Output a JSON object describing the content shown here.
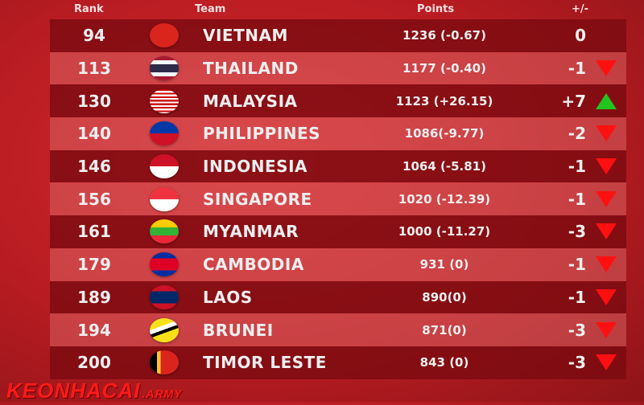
{
  "watermark": {
    "brand": "KEONHACAI",
    "suffix": ".ARMY"
  },
  "headers": {
    "rank": "Rank",
    "team": "Team",
    "points": "Points",
    "change": "+/-"
  },
  "colors": {
    "down": "#ff1010",
    "up": "#22c41e"
  },
  "rows": [
    {
      "rank": "94",
      "team": "VIETNAM",
      "points": "1236 (-0.67)",
      "change": "0",
      "trend": "none",
      "flag": "vietnam"
    },
    {
      "rank": "113",
      "team": "THAILAND",
      "points": "1177 (-0.40)",
      "change": "-1",
      "trend": "down",
      "flag": "thailand"
    },
    {
      "rank": "130",
      "team": "MALAYSIA",
      "points": "1123 (+26.15)",
      "change": "+7",
      "trend": "up",
      "flag": "malaysia"
    },
    {
      "rank": "140",
      "team": "PHILIPPINES",
      "points": "1086(-9.77)",
      "change": "-2",
      "trend": "down",
      "flag": "philippines"
    },
    {
      "rank": "146",
      "team": "INDONESIA",
      "points": "1064 (-5.81)",
      "change": "-1",
      "trend": "down",
      "flag": "indonesia"
    },
    {
      "rank": "156",
      "team": "SINGAPORE",
      "points": "1020 (-12.39)",
      "change": "-1",
      "trend": "down",
      "flag": "singapore"
    },
    {
      "rank": "161",
      "team": "MYANMAR",
      "points": "1000 (-11.27)",
      "change": "-3",
      "trend": "down",
      "flag": "myanmar"
    },
    {
      "rank": "179",
      "team": "CAMBODIA",
      "points": "931 (0)",
      "change": "-1",
      "trend": "down",
      "flag": "cambodia"
    },
    {
      "rank": "189",
      "team": "LAOS",
      "points": "890(0)",
      "change": "-1",
      "trend": "down",
      "flag": "laos"
    },
    {
      "rank": "194",
      "team": "BRUNEI",
      "points": "871(0)",
      "change": "-3",
      "trend": "down",
      "flag": "brunei"
    },
    {
      "rank": "200",
      "team": "TIMOR LESTE",
      "points": "843 (0)",
      "change": "-3",
      "trend": "down",
      "flag": "timor-leste"
    }
  ]
}
